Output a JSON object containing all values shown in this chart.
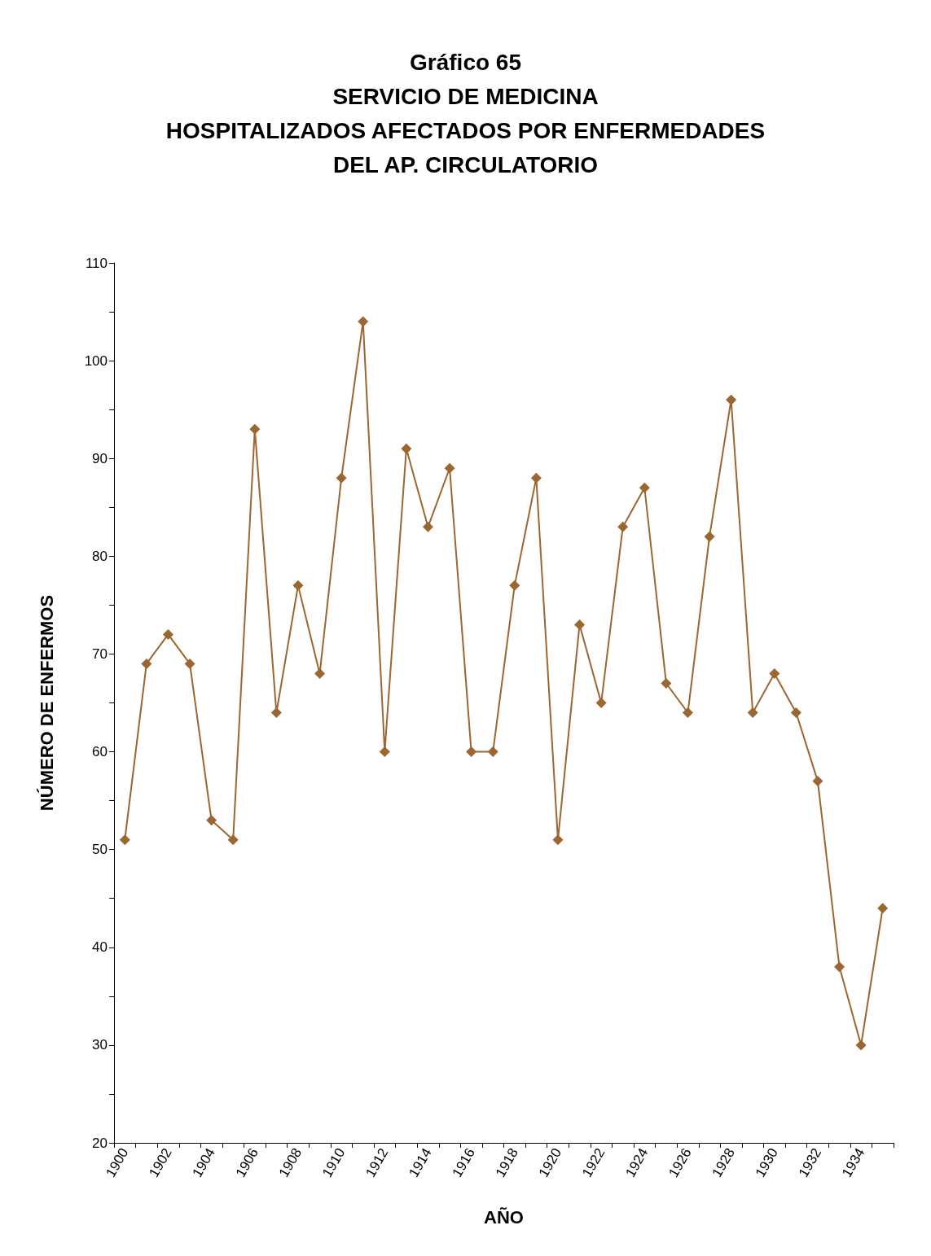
{
  "chart_data": {
    "type": "line",
    "title": "Gráfico 65",
    "subtitle": "SERVICIO DE MEDICINA\nHOSPITALIZADOS AFECTADOS POR ENFERMEDADES\nDEL AP. CIRCULATORIO",
    "xlabel": "AÑO",
    "ylabel": "NÚMERO DE ENFERMOS",
    "categories": [
      "1900",
      null,
      "1902",
      null,
      "1904",
      null,
      "1906",
      null,
      "1908",
      null,
      "1910",
      null,
      "1912",
      null,
      "1914",
      null,
      "1916",
      null,
      "1918",
      null,
      "1920",
      null,
      "1922",
      null,
      "1924",
      null,
      "1926",
      null,
      "1928",
      null,
      "1930",
      null,
      "1932",
      null,
      "1934",
      null
    ],
    "series": [
      {
        "color": "#9c6630",
        "values": [
          51,
          69,
          72,
          69,
          53,
          51,
          93,
          64,
          77,
          68,
          88,
          104,
          60,
          91,
          83,
          89,
          60,
          60,
          77,
          88,
          51,
          73,
          65,
          83,
          87,
          67,
          64,
          82,
          96,
          64,
          68,
          64,
          57,
          38,
          30,
          44
        ]
      }
    ],
    "ylim": [
      20,
      110
    ],
    "yticks": [
      20,
      {
        "value": 25,
        "label": null
      },
      30,
      {
        "value": 35,
        "label": null
      },
      40,
      {
        "value": 45,
        "label": null
      },
      50,
      {
        "value": 55,
        "label": null
      },
      60,
      {
        "value": 65,
        "label": null
      },
      70,
      {
        "value": 75,
        "label": null
      },
      80,
      {
        "value": 85,
        "label": null
      },
      90,
      {
        "value": 95,
        "label": null
      },
      100,
      {
        "value": 105,
        "label": null
      },
      110
    ],
    "grid": false,
    "marker": "diamond",
    "line_style": "solid"
  }
}
